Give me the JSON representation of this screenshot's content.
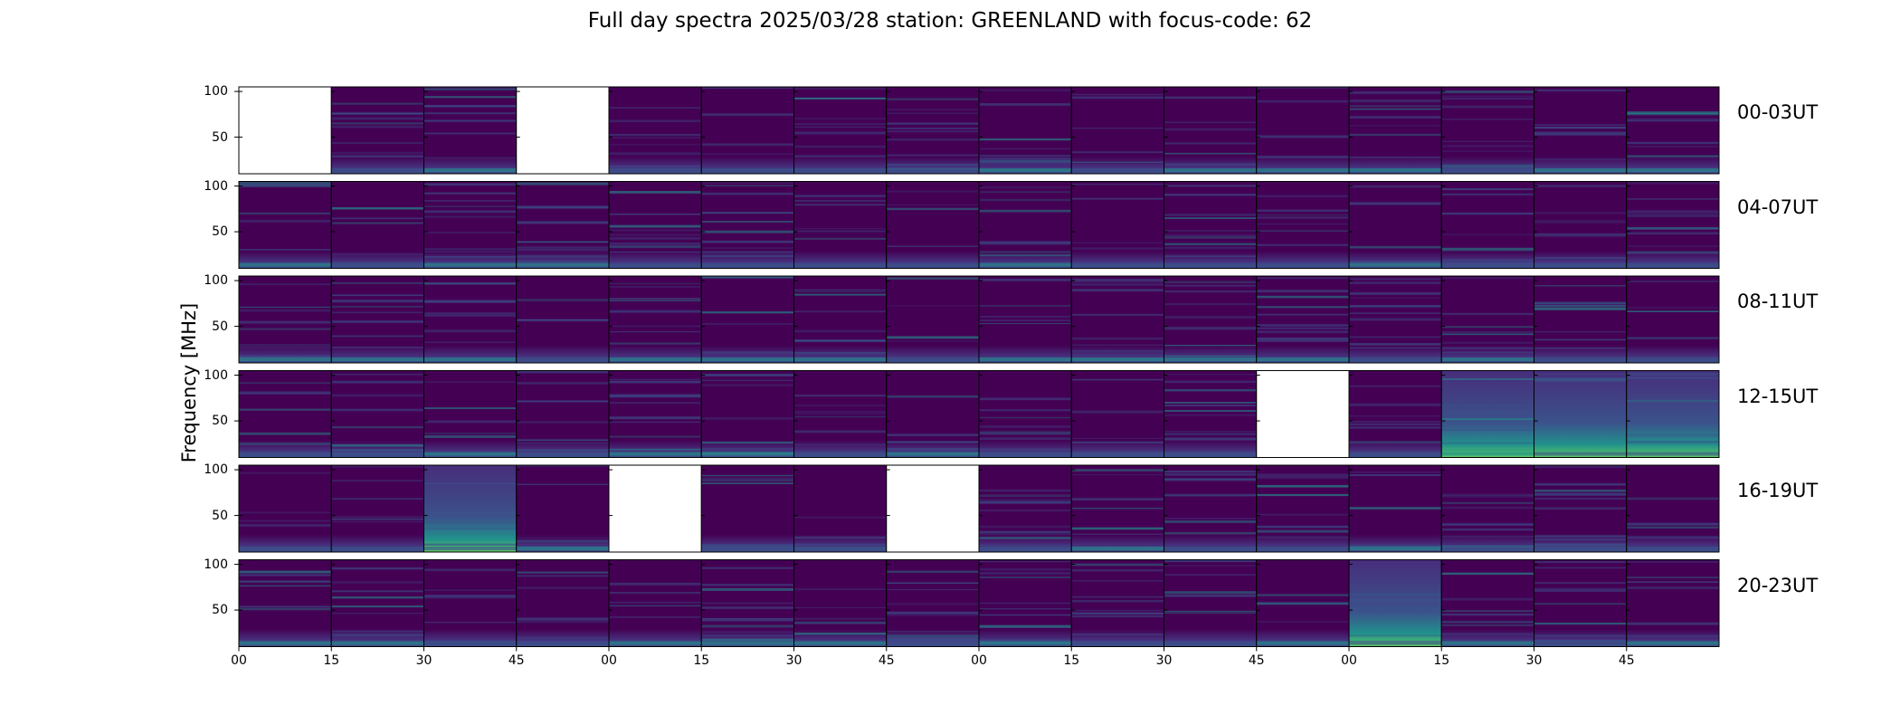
{
  "title": "Full day spectra 2025/03/28 station: GREENLAND with focus-code: 62",
  "chart_data": {
    "type": "heatmap",
    "title": "Full day spectra 2025/03/28 station: GREENLAND with focus-code: 62",
    "ylabel": "Frequency [MHz]",
    "xlabel": "",
    "ylim": [
      10,
      105
    ],
    "y_ticks": [
      "100",
      "50"
    ],
    "x_tick_labels": [
      "00",
      "15",
      "30",
      "45",
      "00",
      "15",
      "30",
      "45",
      "00",
      "15",
      "30",
      "45",
      "00",
      "15",
      "30",
      "45"
    ],
    "rows": [
      {
        "label": "00-03UT",
        "missing": [
          0,
          3
        ],
        "bright": []
      },
      {
        "label": "04-07UT",
        "missing": [],
        "bright": []
      },
      {
        "label": "08-11UT",
        "missing": [],
        "bright": []
      },
      {
        "label": "12-15UT",
        "missing": [
          11
        ],
        "bright": [
          13,
          14,
          15
        ]
      },
      {
        "label": "16-19UT",
        "missing": [
          4,
          7
        ],
        "bright": [
          2
        ]
      },
      {
        "label": "20-23UT",
        "missing": [],
        "bright": [
          12
        ]
      }
    ],
    "panels_per_row": 16,
    "minutes_per_panel": 15,
    "colormap": "viridis",
    "colors": {
      "background": "#440154",
      "mid": "#3b528b",
      "bright": "#21918c",
      "peak": "#5ec962"
    }
  }
}
